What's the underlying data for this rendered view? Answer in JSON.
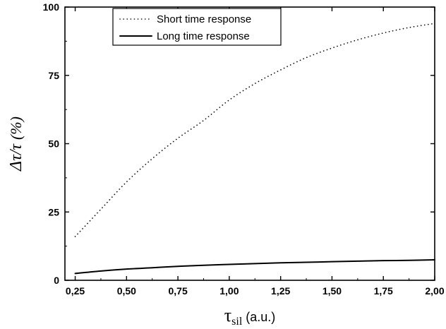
{
  "chart_data": {
    "type": "line",
    "title": "",
    "ylabel": "Δτ/τ (%)",
    "ylabel_parts": {
      "main": "Δτ/τ",
      "unit": "(%)"
    },
    "xlabel": "τsil (a.u.)",
    "xlabel_parts": {
      "symbol": "τ",
      "subscript": "sil",
      "unit": "(a.u.)"
    },
    "xlim": [
      0.2,
      2.0
    ],
    "ylim": [
      0,
      100
    ],
    "x_ticks": [
      0.25,
      0.5,
      0.75,
      1.0,
      1.25,
      1.5,
      1.75,
      2.0
    ],
    "x_tick_labels": [
      "0,25",
      "0,50",
      "0,75",
      "1,00",
      "1,25",
      "1,50",
      "1,75",
      "2,00"
    ],
    "y_ticks": [
      0,
      25,
      50,
      75,
      100
    ],
    "y_tick_labels": [
      "0",
      "25",
      "50",
      "75",
      "100"
    ],
    "grid": false,
    "legend_position": "top-center",
    "series": [
      {
        "name": "Short time response",
        "style": "dotted",
        "color": "#000000",
        "x": [
          0.25,
          0.375,
          0.5,
          0.625,
          0.75,
          0.875,
          1.0,
          1.125,
          1.25,
          1.375,
          1.5,
          1.625,
          1.75,
          1.875,
          2.0
        ],
        "y": [
          16,
          26,
          36,
          44.5,
          52,
          58.5,
          66,
          72,
          77,
          81.5,
          85,
          88,
          90.5,
          92.5,
          94
        ]
      },
      {
        "name": "Long time response",
        "style": "solid",
        "color": "#000000",
        "x": [
          0.25,
          0.375,
          0.5,
          0.625,
          0.75,
          0.875,
          1.0,
          1.125,
          1.25,
          1.375,
          1.5,
          1.625,
          1.75,
          1.875,
          2.0
        ],
        "y": [
          2.5,
          3.4,
          4.1,
          4.6,
          5.1,
          5.5,
          5.8,
          6.1,
          6.4,
          6.6,
          6.8,
          7.0,
          7.2,
          7.3,
          7.5
        ]
      }
    ]
  }
}
